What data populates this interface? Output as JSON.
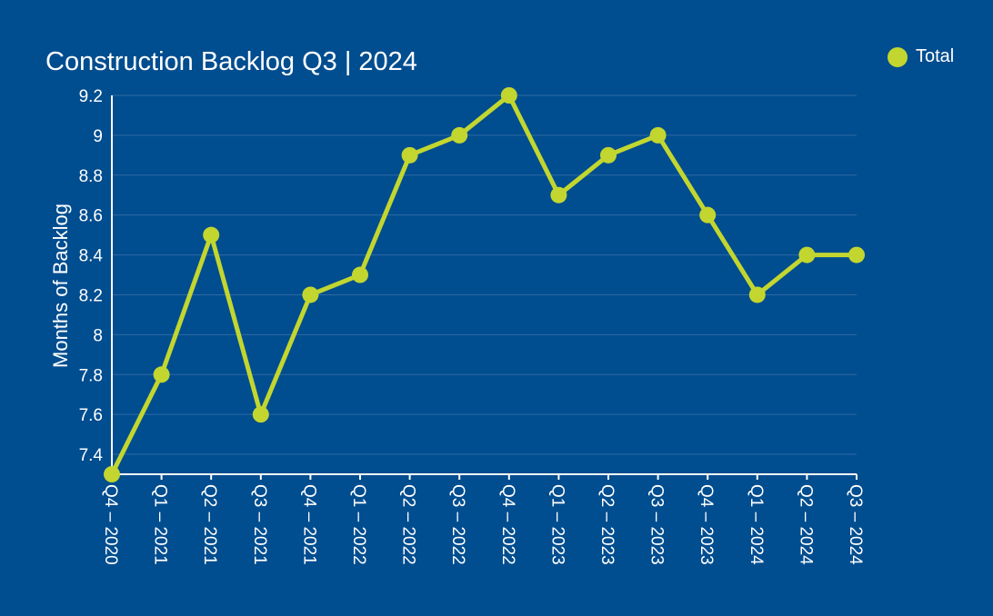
{
  "chart_data": {
    "type": "line",
    "title": "Construction Backlog Q3 | 2024",
    "xlabel": "",
    "ylabel": "Months of Backlog",
    "categories": [
      "Q4 – 2020",
      "Q1 – 2021",
      "Q2 – 2021",
      "Q3 – 2021",
      "Q4 – 2021",
      "Q1 – 2022",
      "Q2 – 2022",
      "Q3 – 2022",
      "Q4 – 2022",
      "Q1 – 2023",
      "Q2 – 2023",
      "Q3 – 2023",
      "Q4 – 2023",
      "Q1 – 2024",
      "Q2 – 2024",
      "Q3 – 2024"
    ],
    "series": [
      {
        "name": "Total",
        "values": [
          7.3,
          7.8,
          8.5,
          7.6,
          8.2,
          8.3,
          8.9,
          9.0,
          9.2,
          8.7,
          8.9,
          9.0,
          8.6,
          8.2,
          8.4,
          8.4
        ]
      }
    ],
    "ylim": [
      7.3,
      9.2
    ],
    "yticks": [
      "9.2",
      "9",
      "8.8",
      "8.6",
      "8.4",
      "8.2",
      "8",
      "7.8",
      "7.6",
      "7.4"
    ],
    "grid": true,
    "legend_position": "top-right",
    "colors": {
      "background": "#004d8f",
      "line": "#c2d62f",
      "grid": "#2e6aa3",
      "axis": "#ffffff",
      "text": "#ffffff"
    }
  }
}
